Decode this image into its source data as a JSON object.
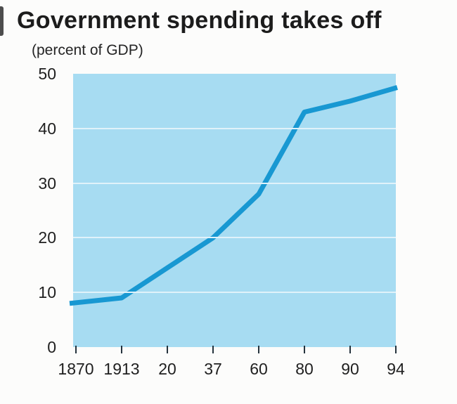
{
  "chart_data": {
    "type": "line",
    "title": "Government spending takes off",
    "subtitle": "(percent of GDP)",
    "xlabel": "",
    "ylabel": "percent of GDP",
    "categories": [
      "1870",
      "1913",
      "20",
      "37",
      "60",
      "80",
      "90",
      "94"
    ],
    "values": [
      8,
      9,
      14.5,
      20,
      28,
      43,
      45,
      47.5
    ],
    "series": [
      {
        "name": "Government spending (percent of GDP)",
        "values": [
          8,
          9,
          14.5,
          20,
          28,
          43,
          45,
          47.5
        ]
      }
    ],
    "ylim": [
      0,
      50
    ],
    "yticks": [
      50,
      40,
      30,
      20,
      10,
      0
    ],
    "grid": "horizontal",
    "legend": "none",
    "colors": {
      "line": "#1898d2",
      "plot_background": "#a7dcf2",
      "gridline": "#e0f2fa",
      "tick": "#25333d",
      "text": "#1f1f1f",
      "page_background": "#fcfcfb"
    }
  }
}
